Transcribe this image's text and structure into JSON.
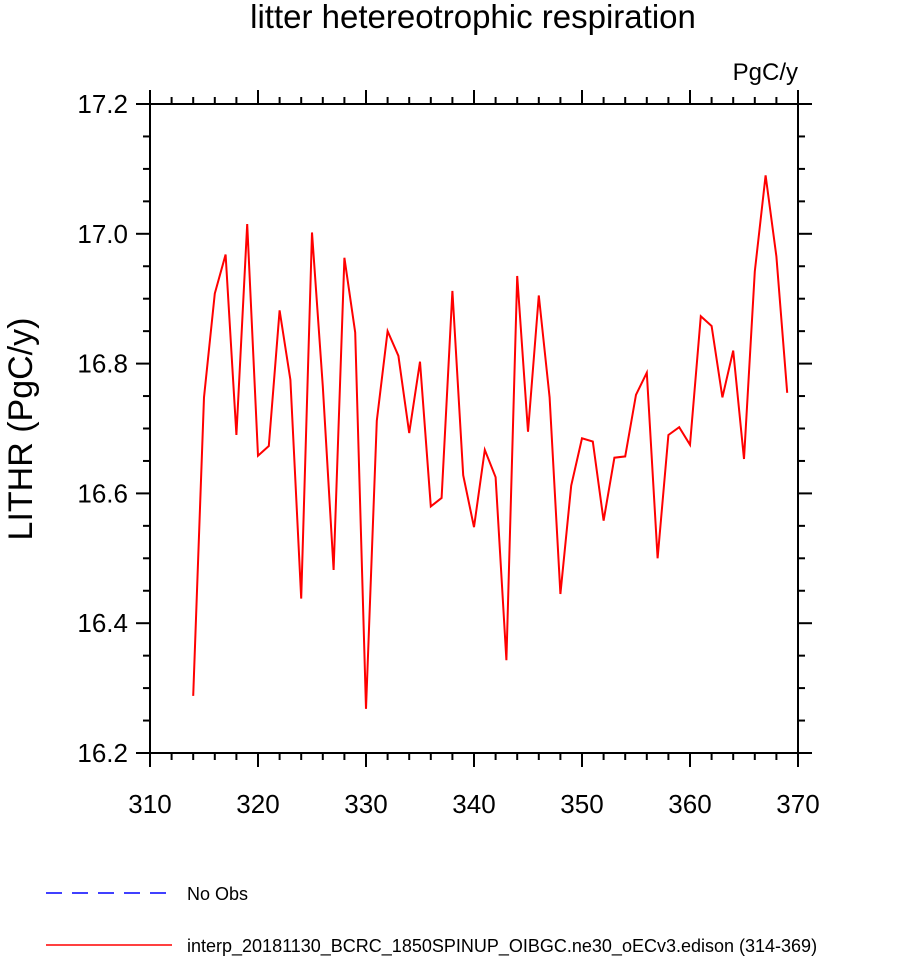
{
  "chart_data": {
    "type": "line",
    "title": "litter hetereotrophic respiration",
    "units_label": "PgC/y",
    "ylabel": "LITHR  (PgC/y)",
    "xlabel": "",
    "xlim": [
      310,
      370
    ],
    "ylim": [
      16.2,
      17.2
    ],
    "x_ticks": [
      310,
      320,
      330,
      340,
      350,
      360,
      370
    ],
    "y_ticks": [
      16.2,
      16.4,
      16.6,
      16.8,
      17.0,
      17.2
    ],
    "y_tick_labels": [
      "16.2",
      "16.4",
      "16.6",
      "16.8",
      "17.0",
      "17.2"
    ],
    "grid": false,
    "legend_position": "bottom-left",
    "series": [
      {
        "name": "interp_20181130_BCRC_1850SPINUP_OIBGC.ne30_oECv3.edison (314-369)",
        "color": "#ff0000",
        "style": "solid",
        "x": [
          314,
          315,
          316,
          317,
          318,
          319,
          320,
          321,
          322,
          323,
          324,
          325,
          326,
          327,
          328,
          329,
          330,
          331,
          332,
          333,
          334,
          335,
          336,
          337,
          338,
          339,
          340,
          341,
          342,
          343,
          344,
          345,
          346,
          347,
          348,
          349,
          350,
          351,
          352,
          353,
          354,
          355,
          356,
          357,
          358,
          359,
          360,
          361,
          362,
          363,
          364,
          365,
          366,
          367,
          368,
          369
        ],
        "y": [
          16.288,
          16.748,
          16.908,
          16.968,
          16.69,
          17.015,
          16.658,
          16.673,
          16.882,
          16.775,
          16.438,
          17.002,
          16.765,
          16.482,
          16.963,
          16.848,
          16.268,
          16.712,
          16.85,
          16.812,
          16.693,
          16.803,
          16.58,
          16.593,
          16.912,
          16.628,
          16.548,
          16.667,
          16.625,
          16.343,
          16.935,
          16.695,
          16.905,
          16.748,
          16.445,
          16.612,
          16.685,
          16.68,
          16.558,
          16.655,
          16.657,
          16.752,
          16.786,
          16.5,
          16.69,
          16.702,
          16.675,
          16.873,
          16.858,
          16.748,
          16.82,
          16.653,
          16.942,
          17.09,
          16.965,
          16.755
        ]
      },
      {
        "name": "No Obs",
        "color": "#0000ff",
        "style": "dashed",
        "x": [],
        "y": []
      }
    ]
  }
}
